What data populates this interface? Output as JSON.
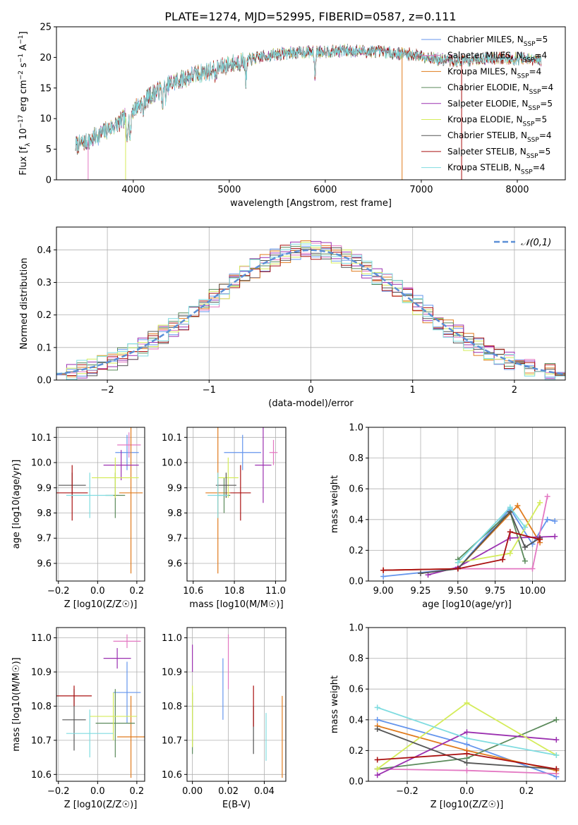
{
  "figure_title": "PLATE=1274, MJD=52995, FIBERID=0587, z=0.111",
  "colors": {
    "Chabrier MILES": "#6495ed",
    "Salpeter MILES": "#e377c2",
    "Kroupa MILES": "#e07b1e",
    "Chabrier ELODIE": "#5b8a5b",
    "Salpeter ELODIE": "#9b30b0",
    "Kroupa ELODIE": "#d4ec5a",
    "Chabrier STELIB": "#555555",
    "Salpeter STELIB": "#aa1111",
    "Kroupa STELIB": "#7fdce0"
  },
  "chart_data": [
    {
      "id": "spectrum",
      "type": "line",
      "title": "PLATE=1274, MJD=52995, FIBERID=0587, z=0.111",
      "xlabel": "wavelength [Angstrom, rest frame]",
      "ylabel": "Flux [f_λ 10^-17 erg cm^-2 s^-1 A^-1]",
      "xlim": [
        3200,
        8500
      ],
      "ylim": [
        0,
        25
      ],
      "xticks": [
        4000,
        5000,
        6000,
        7000,
        8000
      ],
      "yticks": [
        0,
        5,
        10,
        15,
        20,
        25
      ],
      "grid": false,
      "legend_position": "right",
      "legend": [
        "Chabrier MILES, N_SSP=5",
        "Salpeter MILES, N_SSP=4",
        "Kroupa MILES, N_SSP=4",
        "Chabrier ELODIE, N_SSP=4",
        "Salpeter ELODIE, N_SSP=5",
        "Kroupa ELODIE, N_SSP=5",
        "Chabrier STELIB, N_SSP=4",
        "Salpeter STELIB, N_SSP=5",
        "Kroupa STELIB, N_SSP=4"
      ],
      "continuum_x": [
        3400,
        3550,
        3700,
        3850,
        4000,
        4200,
        4400,
        4600,
        4800,
        5000,
        5200,
        5400,
        5600,
        5800,
        6000,
        6200,
        6400,
        6600,
        6800,
        7000,
        7200,
        7400,
        7600,
        7800,
        8000,
        8250
      ],
      "continuum_y": [
        5.6,
        6.5,
        7.9,
        9.2,
        11.5,
        14.0,
        15.8,
        17.0,
        17.8,
        18.9,
        19.6,
        20.3,
        20.7,
        20.9,
        21.0,
        21.1,
        21.0,
        20.9,
        20.6,
        20.3,
        19.6,
        19.4,
        19.8,
        19.9,
        19.8,
        19.5
      ],
      "absorption_lines": [
        {
          "x": 3933,
          "y": 6.4
        },
        {
          "x": 3968,
          "y": 6.6
        },
        {
          "x": 4102,
          "y": 11.1
        },
        {
          "x": 4304,
          "y": 12.6
        },
        {
          "x": 4341,
          "y": 13.4
        },
        {
          "x": 4861,
          "y": 16.7
        },
        {
          "x": 5175,
          "y": 16.2
        },
        {
          "x": 5892,
          "y": 17.2
        }
      ],
      "drop_lines": [
        {
          "x": 3530,
          "series": "Salpeter MILES"
        },
        {
          "x": 3920,
          "series": "Kroupa ELODIE"
        },
        {
          "x": 6800,
          "series": "Kroupa MILES"
        },
        {
          "x": 7420,
          "series": "Salpeter STELIB"
        }
      ],
      "wavelength_range": [
        3400,
        8250
      ]
    },
    {
      "id": "residuals",
      "type": "histogram",
      "xlabel": "(data-model)/error",
      "ylabel": "Normed distribution",
      "xlim": [
        -2.5,
        2.5
      ],
      "ylim": [
        0,
        0.47
      ],
      "xticks": [
        -2,
        -1,
        0,
        1,
        2
      ],
      "yticks": [
        0,
        0.1,
        0.2,
        0.3,
        0.4
      ],
      "grid": true,
      "legend": [
        "𝒩(0,1)"
      ],
      "legend_position": "top-right",
      "bin_width": 0.1,
      "reference_curve": "normal(0,1)"
    },
    {
      "id": "age_vs_Z",
      "type": "errorbar",
      "xlabel": "Z [log10(Z/Z☉)]",
      "ylabel": "age [log10(age/yr)]",
      "xlim": [
        -0.21,
        0.24
      ],
      "ylim": [
        9.53,
        10.14
      ],
      "xticks": [
        -0.2,
        0.0,
        0.2
      ],
      "yticks": [
        9.6,
        9.7,
        9.8,
        9.9,
        10.0,
        10.1
      ],
      "grid": true,
      "points": [
        {
          "series": "Chabrier MILES",
          "x": 0.15,
          "xerr": 0.06,
          "y": 10.04,
          "yerr": 0.07
        },
        {
          "series": "Salpeter MILES",
          "x": 0.16,
          "xerr": 0.06,
          "y": 10.07,
          "yerr": 0.05
        },
        {
          "series": "Kroupa MILES",
          "x": 0.17,
          "xerr": 0.06,
          "y": 9.88,
          "yerr": 0.32
        },
        {
          "series": "Chabrier ELODIE",
          "x": 0.09,
          "xerr": 0.05,
          "y": 9.87,
          "yerr": 0.09
        },
        {
          "series": "Salpeter ELODIE",
          "x": 0.12,
          "xerr": 0.09,
          "y": 9.99,
          "yerr": 0.06
        },
        {
          "series": "Kroupa ELODIE",
          "x": 0.09,
          "xerr": 0.12,
          "y": 9.94,
          "yerr": 0.08
        },
        {
          "series": "Chabrier STELIB",
          "x": -0.13,
          "xerr": 0.07,
          "y": 9.91,
          "yerr": 0.05
        },
        {
          "series": "Salpeter STELIB",
          "x": -0.13,
          "xerr": 0.08,
          "y": 9.88,
          "yerr": 0.11
        },
        {
          "series": "Kroupa STELIB",
          "x": -0.04,
          "xerr": 0.12,
          "y": 9.87,
          "yerr": 0.09
        }
      ]
    },
    {
      "id": "age_vs_mass",
      "type": "errorbar",
      "xlabel": "mass [log10(M/M☉)]",
      "ylabel": "",
      "xlim": [
        10.57,
        11.05
      ],
      "ylim": [
        9.53,
        10.14
      ],
      "xticks": [
        10.6,
        10.8,
        11.0
      ],
      "yticks": [
        9.6,
        9.7,
        9.8,
        9.9,
        10.0,
        10.1
      ],
      "grid": true,
      "points": [
        {
          "series": "Chabrier MILES",
          "x": 10.84,
          "xerr": 0.09,
          "y": 10.04,
          "yerr": 0.07
        },
        {
          "series": "Salpeter MILES",
          "x": 10.99,
          "xerr": 0.02,
          "y": 10.04,
          "yerr": 0.05
        },
        {
          "series": "Kroupa MILES",
          "x": 10.72,
          "xerr": 0.06,
          "y": 9.88,
          "yerr": 0.32
        },
        {
          "series": "Chabrier ELODIE",
          "x": 10.75,
          "xerr": 0.03,
          "y": 9.87,
          "yerr": 0.07
        },
        {
          "series": "Salpeter ELODIE",
          "x": 10.94,
          "xerr": 0.04,
          "y": 9.99,
          "yerr": 0.15
        },
        {
          "series": "Kroupa ELODIE",
          "x": 10.77,
          "xerr": 0.05,
          "y": 9.94,
          "yerr": 0.08
        },
        {
          "series": "Chabrier STELIB",
          "x": 10.76,
          "xerr": 0.05,
          "y": 9.91,
          "yerr": 0.05
        },
        {
          "series": "Salpeter STELIB",
          "x": 10.83,
          "xerr": 0.05,
          "y": 9.88,
          "yerr": 0.11
        },
        {
          "series": "Kroupa STELIB",
          "x": 10.72,
          "xerr": 0.05,
          "y": 9.87,
          "yerr": 0.09
        }
      ]
    },
    {
      "id": "weight_vs_age",
      "type": "line",
      "xlabel": "age [log10(age/yr)]",
      "ylabel": "mass weight",
      "xlim": [
        8.9,
        10.22
      ],
      "ylim": [
        0,
        1
      ],
      "xticks": [
        9.0,
        9.25,
        9.5,
        9.75,
        10.0
      ],
      "yticks": [
        0.0,
        0.2,
        0.4,
        0.6,
        0.8,
        1.0
      ],
      "grid": true,
      "series": [
        {
          "name": "Chabrier MILES",
          "x": [
            9.0,
            9.5,
            9.85,
            10.0,
            10.1,
            10.15
          ],
          "y": [
            0.03,
            0.08,
            0.47,
            0.24,
            0.4,
            0.39
          ]
        },
        {
          "name": "Salpeter MILES",
          "x": [
            9.0,
            9.5,
            10.0,
            10.1
          ],
          "y": [
            0.07,
            0.08,
            0.08,
            0.55
          ]
        },
        {
          "name": "Kroupa MILES",
          "x": [
            9.0,
            9.5,
            9.9,
            10.05
          ],
          "y": [
            0.07,
            0.08,
            0.49,
            0.25
          ]
        },
        {
          "name": "Chabrier ELODIE",
          "x": [
            9.5,
            9.85,
            9.95
          ],
          "y": [
            0.14,
            0.45,
            0.13
          ]
        },
        {
          "name": "Salpeter ELODIE",
          "x": [
            9.3,
            9.5,
            9.85,
            10.15
          ],
          "y": [
            0.04,
            0.09,
            0.28,
            0.29
          ]
        },
        {
          "name": "Kroupa ELODIE",
          "x": [
            9.5,
            9.85,
            10.05
          ],
          "y": [
            0.12,
            0.18,
            0.51
          ]
        },
        {
          "name": "Chabrier STELIB",
          "x": [
            9.25,
            9.5,
            9.85,
            9.95,
            10.05
          ],
          "y": [
            0.05,
            0.08,
            0.45,
            0.22,
            0.28
          ]
        },
        {
          "name": "Salpeter STELIB",
          "x": [
            9.0,
            9.5,
            9.8,
            9.85,
            10.05
          ],
          "y": [
            0.07,
            0.08,
            0.14,
            0.32,
            0.27
          ]
        },
        {
          "name": "Kroupa STELIB",
          "x": [
            9.5,
            9.85,
            9.95
          ],
          "y": [
            0.12,
            0.48,
            0.35
          ]
        }
      ]
    },
    {
      "id": "mass_vs_Z",
      "type": "errorbar",
      "xlabel": "Z [log10(Z/Z☉)]",
      "ylabel": "mass [log10(M/M☉)]",
      "xlim": [
        -0.21,
        0.24
      ],
      "ylim": [
        10.58,
        11.03
      ],
      "xticks": [
        -0.2,
        0.0,
        0.2
      ],
      "yticks": [
        10.6,
        10.7,
        10.8,
        10.9,
        11.0
      ],
      "grid": true,
      "points": [
        {
          "series": "Chabrier MILES",
          "x": 0.15,
          "xerr": 0.07,
          "y": 10.84,
          "yerr": 0.09
        },
        {
          "series": "Salpeter MILES",
          "x": 0.15,
          "xerr": 0.07,
          "y": 10.99,
          "yerr": 0.02
        },
        {
          "series": "Kroupa MILES",
          "x": 0.17,
          "xerr": 0.07,
          "y": 10.71,
          "yerr": 0.12
        },
        {
          "series": "Chabrier ELODIE",
          "x": 0.09,
          "xerr": 0.1,
          "y": 10.75,
          "yerr": 0.1
        },
        {
          "series": "Salpeter ELODIE",
          "x": 0.1,
          "xerr": 0.07,
          "y": 10.94,
          "yerr": 0.03
        },
        {
          "series": "Kroupa ELODIE",
          "x": 0.08,
          "xerr": 0.12,
          "y": 10.77,
          "yerr": 0.07
        },
        {
          "series": "Chabrier STELIB",
          "x": -0.12,
          "xerr": 0.06,
          "y": 10.76,
          "yerr": 0.09
        },
        {
          "series": "Salpeter STELIB",
          "x": -0.12,
          "xerr": 0.09,
          "y": 10.83,
          "yerr": 0.03
        },
        {
          "series": "Kroupa STELIB",
          "x": -0.04,
          "xerr": 0.12,
          "y": 10.72,
          "yerr": 0.07
        }
      ]
    },
    {
      "id": "mass_vs_EBV",
      "type": "errorbar",
      "xlabel": "E(B-V)",
      "ylabel": "",
      "xlim": [
        -0.003,
        0.052
      ],
      "ylim": [
        10.58,
        11.03
      ],
      "xticks": [
        0.0,
        0.02,
        0.04
      ],
      "yticks": [
        10.6,
        10.7,
        10.8,
        10.9,
        11.0
      ],
      "grid": true,
      "points": [
        {
          "series": "Chabrier MILES",
          "x": 0.017,
          "y": 10.85,
          "yerr": 0.09
        },
        {
          "series": "Salpeter MILES",
          "x": 0.02,
          "y": 10.93,
          "yerr": 0.08
        },
        {
          "series": "Kroupa MILES",
          "x": 0.05,
          "y": 10.71,
          "yerr": 0.12
        },
        {
          "series": "Chabrier ELODIE",
          "x": 0.0,
          "y": 10.75,
          "yerr": 0.09
        },
        {
          "series": "Salpeter ELODIE",
          "x": 0.0,
          "y": 10.94,
          "yerr": 0.04
        },
        {
          "series": "Kroupa ELODIE",
          "x": 0.0,
          "y": 10.77,
          "yerr": 0.09
        },
        {
          "series": "Chabrier STELIB",
          "x": 0.034,
          "y": 10.73,
          "yerr": 0.07
        },
        {
          "series": "Salpeter STELIB",
          "x": 0.034,
          "y": 10.8,
          "yerr": 0.06
        },
        {
          "series": "Kroupa STELIB",
          "x": 0.041,
          "y": 10.71,
          "yerr": 0.07
        }
      ]
    },
    {
      "id": "weight_vs_Z",
      "type": "line",
      "xlabel": "Z [log10(Z/Z☉)]",
      "ylabel": "mass weight",
      "xlim": [
        -0.33,
        0.33
      ],
      "ylim": [
        0,
        1
      ],
      "xticks": [
        -0.2,
        0.0,
        0.2
      ],
      "yticks": [
        0.0,
        0.2,
        0.4,
        0.6,
        0.8,
        1.0
      ],
      "grid": true,
      "series": [
        {
          "name": "Chabrier MILES",
          "x": [
            -0.3,
            0.0,
            0.3
          ],
          "y": [
            0.4,
            0.24,
            0.03
          ]
        },
        {
          "name": "Salpeter MILES",
          "x": [
            -0.3,
            0.0,
            0.3
          ],
          "y": [
            0.08,
            0.07,
            0.05
          ]
        },
        {
          "name": "Kroupa MILES",
          "x": [
            -0.3,
            0.0,
            0.3
          ],
          "y": [
            0.36,
            0.2,
            0.07
          ]
        },
        {
          "name": "Chabrier ELODIE",
          "x": [
            -0.3,
            0.0,
            0.3
          ],
          "y": [
            0.08,
            0.15,
            0.4
          ]
        },
        {
          "name": "Salpeter ELODIE",
          "x": [
            -0.3,
            0.0,
            0.3
          ],
          "y": [
            0.04,
            0.32,
            0.27
          ]
        },
        {
          "name": "Kroupa ELODIE",
          "x": [
            -0.3,
            0.0,
            0.3
          ],
          "y": [
            0.08,
            0.51,
            0.17
          ]
        },
        {
          "name": "Chabrier STELIB",
          "x": [
            -0.3,
            0.0,
            0.3
          ],
          "y": [
            0.34,
            0.12,
            0.08
          ]
        },
        {
          "name": "Salpeter STELIB",
          "x": [
            -0.3,
            0.0,
            0.3
          ],
          "y": [
            0.14,
            0.18,
            0.08
          ]
        },
        {
          "name": "Kroupa STELIB",
          "x": [
            -0.3,
            0.0,
            0.3
          ],
          "y": [
            0.48,
            0.28,
            0.17
          ]
        }
      ]
    }
  ]
}
